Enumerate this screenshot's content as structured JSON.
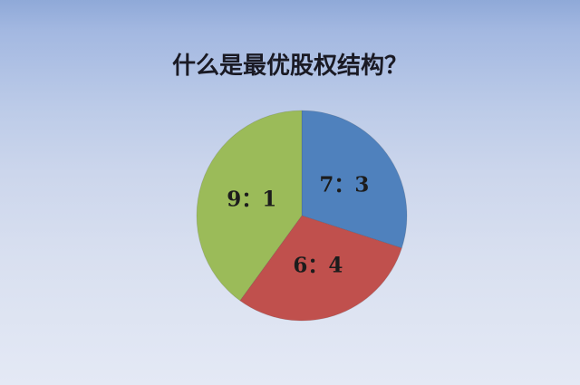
{
  "slide": {
    "background": {
      "gradient_top": "#8fa9d8",
      "gradient_middle": "#ccd6ec",
      "gradient_bottom": "#e4e9f5"
    }
  },
  "chart_data": {
    "type": "pie",
    "title": "什么是最优股权结构？",
    "title_color": "#1a1a24",
    "legend": "none",
    "start_angle_deg": 0,
    "direction": "clockwise",
    "label_color": "#1c1c1c",
    "slices": [
      {
        "label": "7：3",
        "value": 30,
        "color": "#4f81bd"
      },
      {
        "label": "6：4",
        "value": 30,
        "color": "#c0504d"
      },
      {
        "label": "9：1",
        "value": 40,
        "color": "#9bbb59"
      }
    ]
  }
}
